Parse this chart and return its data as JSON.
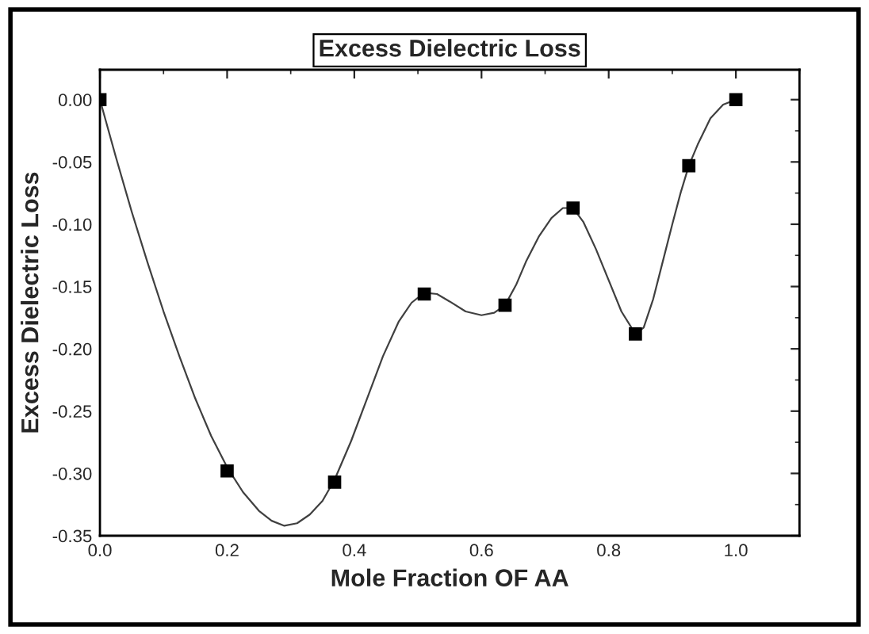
{
  "chart_data": {
    "type": "scatter",
    "title": "Excess Dielectric Loss",
    "xlabel": "Mole Fraction OF AA",
    "ylabel": "Excess Dielectric Loss",
    "series": [
      {
        "type": "line",
        "marker": "none",
        "color": "#404040",
        "x": [
          0.0,
          0.025,
          0.05,
          0.075,
          0.1,
          0.125,
          0.15,
          0.175,
          0.2,
          0.225,
          0.25,
          0.27,
          0.29,
          0.31,
          0.33,
          0.35,
          0.369,
          0.395,
          0.42,
          0.445,
          0.47,
          0.49,
          0.51,
          0.53,
          0.55,
          0.575,
          0.6,
          0.62,
          0.637,
          0.655,
          0.67,
          0.69,
          0.71,
          0.728,
          0.744,
          0.76,
          0.78,
          0.8,
          0.82,
          0.842,
          0.855,
          0.87,
          0.885,
          0.9,
          0.913,
          0.926,
          0.94,
          0.96,
          0.98,
          1.0
        ],
        "values": [
          0.0,
          -0.046,
          -0.09,
          -0.131,
          -0.17,
          -0.206,
          -0.24,
          -0.27,
          -0.295,
          -0.315,
          -0.33,
          -0.338,
          -0.342,
          -0.34,
          -0.333,
          -0.322,
          -0.305,
          -0.274,
          -0.24,
          -0.206,
          -0.178,
          -0.163,
          -0.155,
          -0.156,
          -0.162,
          -0.17,
          -0.173,
          -0.171,
          -0.165,
          -0.148,
          -0.13,
          -0.11,
          -0.095,
          -0.087,
          -0.087,
          -0.098,
          -0.12,
          -0.145,
          -0.17,
          -0.188,
          -0.183,
          -0.16,
          -0.13,
          -0.1,
          -0.075,
          -0.053,
          -0.036,
          -0.015,
          -0.004,
          0.0
        ]
      },
      {
        "marker": "square",
        "color": "#000000",
        "x": [
          0.0,
          0.2,
          0.369,
          0.51,
          0.637,
          0.744,
          0.842,
          0.926,
          1.0
        ],
        "values": [
          0.0,
          -0.298,
          -0.307,
          -0.156,
          -0.165,
          -0.087,
          -0.188,
          -0.053,
          0.0
        ]
      }
    ],
    "xlim": [
      0.0,
      1.1
    ],
    "xticks": [
      {
        "value": 0.0,
        "label": "0.0"
      },
      {
        "value": 0.2,
        "label": "0.2"
      },
      {
        "value": 0.4,
        "label": "0.4"
      },
      {
        "value": 0.6,
        "label": "0.6"
      },
      {
        "value": 0.8,
        "label": "0.8"
      },
      {
        "value": 1.0,
        "label": "1.0"
      }
    ],
    "ylim": [
      -0.35,
      0.024
    ],
    "yticks": [
      {
        "value": -0.35,
        "label": "-0.35"
      },
      {
        "value": -0.3,
        "label": "-0.30"
      },
      {
        "value": -0.25,
        "label": "-0.25"
      },
      {
        "value": -0.2,
        "label": "-0.20"
      },
      {
        "value": -0.15,
        "label": "-0.15"
      },
      {
        "value": -0.1,
        "label": "-0.10"
      },
      {
        "value": -0.05,
        "label": "-0.05"
      },
      {
        "value": 0.0,
        "label": "0.00"
      }
    ],
    "line_style": "solid",
    "grid": false,
    "legend": false
  }
}
